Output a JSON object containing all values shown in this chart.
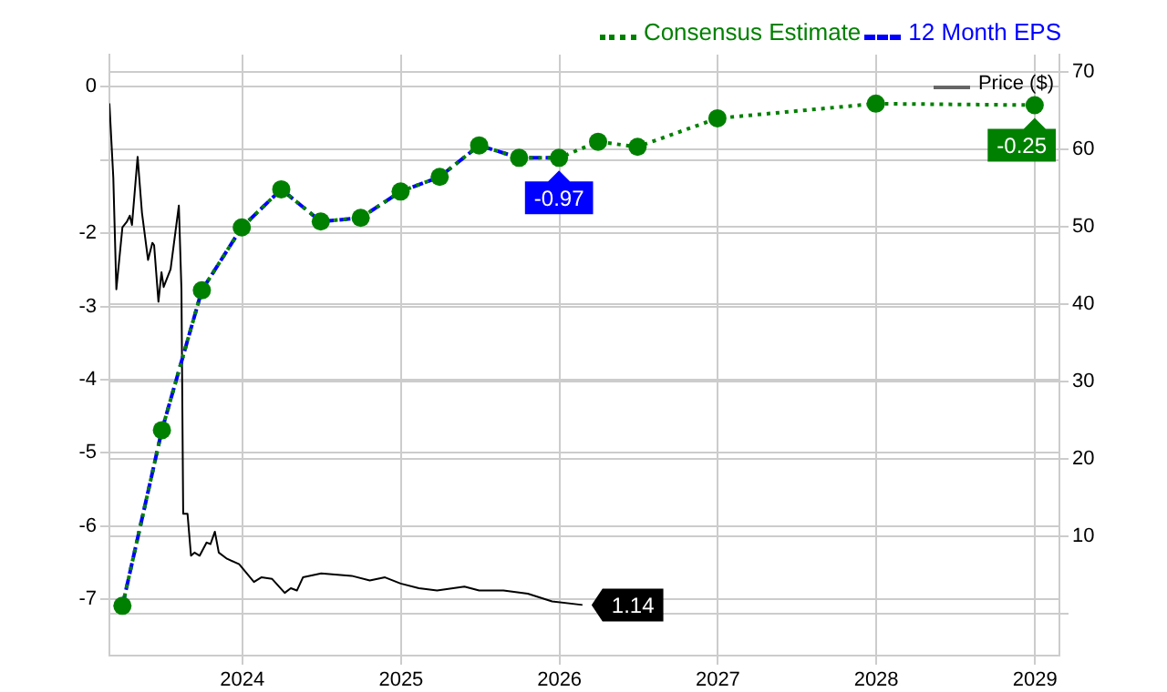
{
  "chart_data": {
    "type": "line",
    "legend": "top right",
    "grid": true,
    "xlim": [
      "2023-03-01",
      "2029-02-26"
    ],
    "xticks": [
      "2024",
      "2025",
      "2026",
      "2027",
      "2028",
      "2029"
    ],
    "ylim": [
      -7.77,
      0.44
    ],
    "yticks": [
      0,
      {
        "value": -1,
        "label": null
      },
      -2,
      -3,
      -4,
      -5,
      -6,
      -7
    ],
    "y2lim": [
      -5.4,
      72.2
    ],
    "y2ticks": [
      {
        "value": 0,
        "label": null
      },
      10,
      20,
      30,
      40,
      50,
      60,
      70
    ],
    "series": [
      {
        "name": "Consensus Estimate",
        "color": "#008000",
        "line_style": "dotted",
        "marker": "circle",
        "x": [
          "2023-03-31",
          "2023-06-30",
          "2023-09-30",
          "2023-12-31",
          "2024-03-31",
          "2024-06-30",
          "2024-09-30",
          "2024-12-31",
          "2025-03-31",
          "2025-06-30",
          "2025-09-30",
          "2025-12-31",
          "2026-03-31",
          "2026-06-30",
          "2026-12-31",
          "2027-12-31",
          "2028-12-31"
        ],
        "values": [
          -7.09,
          -4.69,
          -2.78,
          -1.92,
          -1.4,
          -1.84,
          -1.79,
          -1.43,
          -1.23,
          -0.8,
          -0.97,
          -0.97,
          -0.75,
          -0.82,
          -0.43,
          -0.23,
          -0.25
        ],
        "value_labels": [
          null,
          null,
          null,
          null,
          null,
          null,
          null,
          null,
          null,
          null,
          null,
          null,
          null,
          null,
          null,
          null,
          "-0.25"
        ]
      },
      {
        "name": "12 Month EPS",
        "color": "#0000ff",
        "line_style": "dashed",
        "marker": "none",
        "x": [
          "2023-03-31",
          "2023-06-30",
          "2023-09-30",
          "2023-12-31",
          "2024-03-31",
          "2024-06-30",
          "2024-09-30",
          "2024-12-31",
          "2025-03-31",
          "2025-06-30",
          "2025-09-30",
          "2025-12-31"
        ],
        "values": [
          -7.09,
          -4.69,
          -2.78,
          -1.92,
          -1.4,
          -1.84,
          -1.79,
          -1.43,
          -1.23,
          -0.8,
          -0.97,
          -0.97
        ],
        "value_labels": [
          null,
          null,
          null,
          null,
          null,
          null,
          null,
          null,
          null,
          null,
          null,
          "-0.97"
        ]
      },
      {
        "name": "Price ($)",
        "color": "#000000",
        "line_style": "solid",
        "marker": "none",
        "axis": "y2",
        "x": [
          "2023-03-01",
          "2023-03-10",
          "2023-03-17",
          "2023-03-31",
          "2023-04-10",
          "2023-04-17",
          "2023-04-22",
          "2023-05-05",
          "2023-05-15",
          "2023-05-29",
          "2023-06-08",
          "2023-06-12",
          "2023-06-22",
          "2023-06-29",
          "2023-07-04",
          "2023-07-20",
          "2023-08-08",
          "2023-08-14",
          "2023-08-18",
          "2023-08-28",
          "2023-09-05",
          "2023-09-13",
          "2023-09-25",
          "2023-10-11",
          "2023-10-20",
          "2023-10-30",
          "2023-11-08",
          "2023-11-27",
          "2023-12-25",
          "2024-01-28",
          "2024-02-14",
          "2024-03-10",
          "2024-04-08",
          "2024-04-22",
          "2024-05-06",
          "2024-05-20",
          "2024-07-01",
          "2024-09-09",
          "2024-10-21",
          "2024-11-25",
          "2024-12-31",
          "2025-02-11",
          "2025-03-25",
          "2025-05-27",
          "2025-06-30",
          "2025-08-25",
          "2025-10-20",
          "2025-12-15",
          "2026-02-23"
        ],
        "values": [
          65.9,
          56.3,
          41.9,
          49.9,
          50.6,
          51.4,
          50.2,
          59,
          51.8,
          45.7,
          47.9,
          47.6,
          40.3,
          44.1,
          42.2,
          44.5,
          52.7,
          41.9,
          12.9,
          12.9,
          7.5,
          7.9,
          7.5,
          9.2,
          9,
          10.6,
          7.9,
          7.1,
          6.4,
          4.1,
          4.7,
          4.5,
          2.7,
          3.3,
          3,
          4.7,
          5.2,
          4.9,
          4.3,
          4.7,
          3.9,
          3.3,
          3,
          3.5,
          3,
          3,
          2.6,
          1.6,
          1.14
        ],
        "value_labels": [
          null,
          null,
          null,
          null,
          null,
          null,
          null,
          null,
          null,
          null,
          null,
          null,
          null,
          null,
          null,
          null,
          null,
          null,
          null,
          null,
          null,
          null,
          null,
          null,
          null,
          null,
          null,
          null,
          null,
          null,
          null,
          null,
          null,
          null,
          null,
          null,
          null,
          null,
          null,
          null,
          null,
          null,
          null,
          null,
          null,
          null,
          null,
          null,
          "1.14"
        ]
      }
    ]
  }
}
